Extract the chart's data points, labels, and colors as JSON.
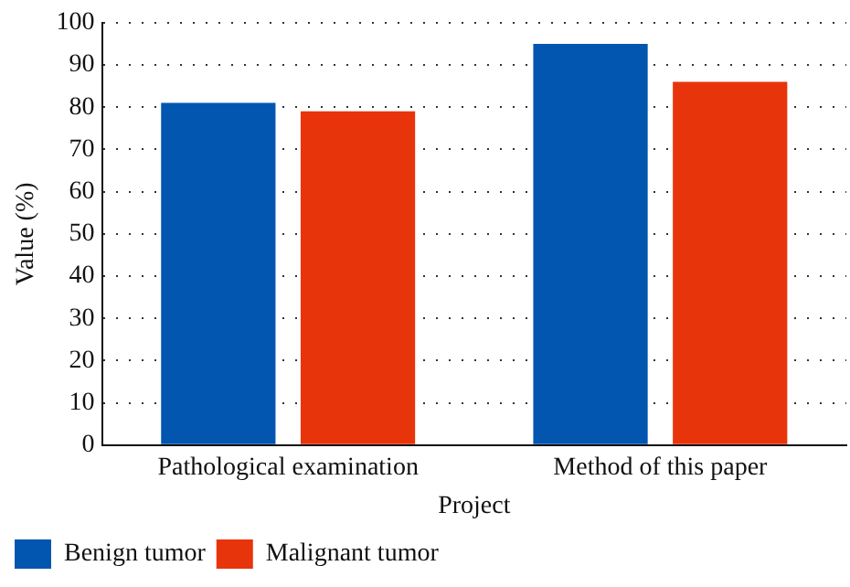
{
  "chart_data": {
    "type": "bar",
    "xlabel": "Project",
    "ylabel": "Value (%)",
    "categories": [
      "Pathological examination",
      "Method of this paper"
    ],
    "series": [
      {
        "name": "Benign tumor",
        "color": "#0356b0",
        "values": [
          81,
          95
        ]
      },
      {
        "name": "Malignant tumor",
        "color": "#e8340a",
        "values": [
          79,
          86
        ]
      }
    ],
    "ylim": [
      0,
      100
    ],
    "yticks": [
      0,
      10,
      20,
      30,
      40,
      50,
      60,
      70,
      80,
      90,
      100
    ],
    "grid": "y",
    "legend": "bottom"
  }
}
